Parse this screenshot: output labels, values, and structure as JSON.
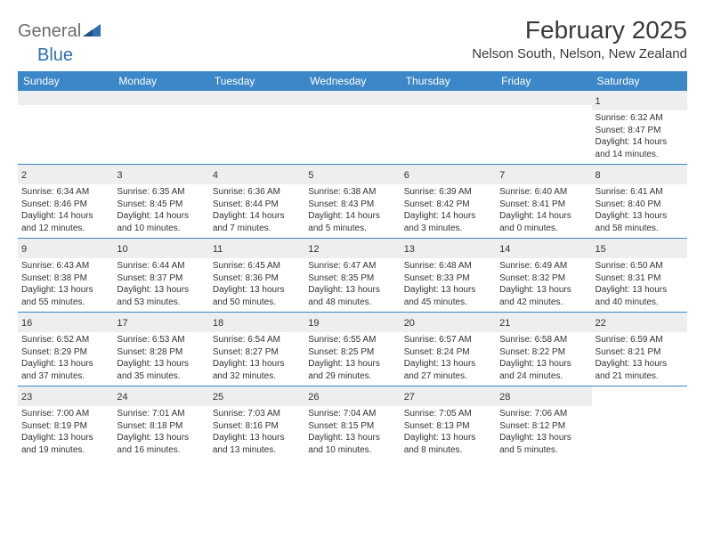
{
  "brand": {
    "part1": "General",
    "part2": "Blue"
  },
  "title": "February 2025",
  "location": "Nelson South, Nelson, New Zealand",
  "colors": {
    "header_bg": "#3b87c8",
    "header_text": "#ffffff",
    "daynum_bg": "#eceeef",
    "text": "#333333",
    "brand_gray": "#6b6b6b",
    "brand_blue": "#2f6fb3",
    "rule": "#3b87c8"
  },
  "day_headers": [
    "Sunday",
    "Monday",
    "Tuesday",
    "Wednesday",
    "Thursday",
    "Friday",
    "Saturday"
  ],
  "weeks": [
    [
      {
        "n": "",
        "lines": [
          "",
          "",
          "",
          ""
        ]
      },
      {
        "n": "",
        "lines": [
          "",
          "",
          "",
          ""
        ]
      },
      {
        "n": "",
        "lines": [
          "",
          "",
          "",
          ""
        ]
      },
      {
        "n": "",
        "lines": [
          "",
          "",
          "",
          ""
        ]
      },
      {
        "n": "",
        "lines": [
          "",
          "",
          "",
          ""
        ]
      },
      {
        "n": "",
        "lines": [
          "",
          "",
          "",
          ""
        ]
      },
      {
        "n": "1",
        "lines": [
          "Sunrise: 6:32 AM",
          "Sunset: 8:47 PM",
          "Daylight: 14 hours",
          "and 14 minutes."
        ]
      }
    ],
    [
      {
        "n": "2",
        "lines": [
          "Sunrise: 6:34 AM",
          "Sunset: 8:46 PM",
          "Daylight: 14 hours",
          "and 12 minutes."
        ]
      },
      {
        "n": "3",
        "lines": [
          "Sunrise: 6:35 AM",
          "Sunset: 8:45 PM",
          "Daylight: 14 hours",
          "and 10 minutes."
        ]
      },
      {
        "n": "4",
        "lines": [
          "Sunrise: 6:36 AM",
          "Sunset: 8:44 PM",
          "Daylight: 14 hours",
          "and 7 minutes."
        ]
      },
      {
        "n": "5",
        "lines": [
          "Sunrise: 6:38 AM",
          "Sunset: 8:43 PM",
          "Daylight: 14 hours",
          "and 5 minutes."
        ]
      },
      {
        "n": "6",
        "lines": [
          "Sunrise: 6:39 AM",
          "Sunset: 8:42 PM",
          "Daylight: 14 hours",
          "and 3 minutes."
        ]
      },
      {
        "n": "7",
        "lines": [
          "Sunrise: 6:40 AM",
          "Sunset: 8:41 PM",
          "Daylight: 14 hours",
          "and 0 minutes."
        ]
      },
      {
        "n": "8",
        "lines": [
          "Sunrise: 6:41 AM",
          "Sunset: 8:40 PM",
          "Daylight: 13 hours",
          "and 58 minutes."
        ]
      }
    ],
    [
      {
        "n": "9",
        "lines": [
          "Sunrise: 6:43 AM",
          "Sunset: 8:38 PM",
          "Daylight: 13 hours",
          "and 55 minutes."
        ]
      },
      {
        "n": "10",
        "lines": [
          "Sunrise: 6:44 AM",
          "Sunset: 8:37 PM",
          "Daylight: 13 hours",
          "and 53 minutes."
        ]
      },
      {
        "n": "11",
        "lines": [
          "Sunrise: 6:45 AM",
          "Sunset: 8:36 PM",
          "Daylight: 13 hours",
          "and 50 minutes."
        ]
      },
      {
        "n": "12",
        "lines": [
          "Sunrise: 6:47 AM",
          "Sunset: 8:35 PM",
          "Daylight: 13 hours",
          "and 48 minutes."
        ]
      },
      {
        "n": "13",
        "lines": [
          "Sunrise: 6:48 AM",
          "Sunset: 8:33 PM",
          "Daylight: 13 hours",
          "and 45 minutes."
        ]
      },
      {
        "n": "14",
        "lines": [
          "Sunrise: 6:49 AM",
          "Sunset: 8:32 PM",
          "Daylight: 13 hours",
          "and 42 minutes."
        ]
      },
      {
        "n": "15",
        "lines": [
          "Sunrise: 6:50 AM",
          "Sunset: 8:31 PM",
          "Daylight: 13 hours",
          "and 40 minutes."
        ]
      }
    ],
    [
      {
        "n": "16",
        "lines": [
          "Sunrise: 6:52 AM",
          "Sunset: 8:29 PM",
          "Daylight: 13 hours",
          "and 37 minutes."
        ]
      },
      {
        "n": "17",
        "lines": [
          "Sunrise: 6:53 AM",
          "Sunset: 8:28 PM",
          "Daylight: 13 hours",
          "and 35 minutes."
        ]
      },
      {
        "n": "18",
        "lines": [
          "Sunrise: 6:54 AM",
          "Sunset: 8:27 PM",
          "Daylight: 13 hours",
          "and 32 minutes."
        ]
      },
      {
        "n": "19",
        "lines": [
          "Sunrise: 6:55 AM",
          "Sunset: 8:25 PM",
          "Daylight: 13 hours",
          "and 29 minutes."
        ]
      },
      {
        "n": "20",
        "lines": [
          "Sunrise: 6:57 AM",
          "Sunset: 8:24 PM",
          "Daylight: 13 hours",
          "and 27 minutes."
        ]
      },
      {
        "n": "21",
        "lines": [
          "Sunrise: 6:58 AM",
          "Sunset: 8:22 PM",
          "Daylight: 13 hours",
          "and 24 minutes."
        ]
      },
      {
        "n": "22",
        "lines": [
          "Sunrise: 6:59 AM",
          "Sunset: 8:21 PM",
          "Daylight: 13 hours",
          "and 21 minutes."
        ]
      }
    ],
    [
      {
        "n": "23",
        "lines": [
          "Sunrise: 7:00 AM",
          "Sunset: 8:19 PM",
          "Daylight: 13 hours",
          "and 19 minutes."
        ]
      },
      {
        "n": "24",
        "lines": [
          "Sunrise: 7:01 AM",
          "Sunset: 8:18 PM",
          "Daylight: 13 hours",
          "and 16 minutes."
        ]
      },
      {
        "n": "25",
        "lines": [
          "Sunrise: 7:03 AM",
          "Sunset: 8:16 PM",
          "Daylight: 13 hours",
          "and 13 minutes."
        ]
      },
      {
        "n": "26",
        "lines": [
          "Sunrise: 7:04 AM",
          "Sunset: 8:15 PM",
          "Daylight: 13 hours",
          "and 10 minutes."
        ]
      },
      {
        "n": "27",
        "lines": [
          "Sunrise: 7:05 AM",
          "Sunset: 8:13 PM",
          "Daylight: 13 hours",
          "and 8 minutes."
        ]
      },
      {
        "n": "28",
        "lines": [
          "Sunrise: 7:06 AM",
          "Sunset: 8:12 PM",
          "Daylight: 13 hours",
          "and 5 minutes."
        ]
      },
      {
        "n": "",
        "lines": [
          "",
          "",
          "",
          ""
        ]
      }
    ]
  ]
}
